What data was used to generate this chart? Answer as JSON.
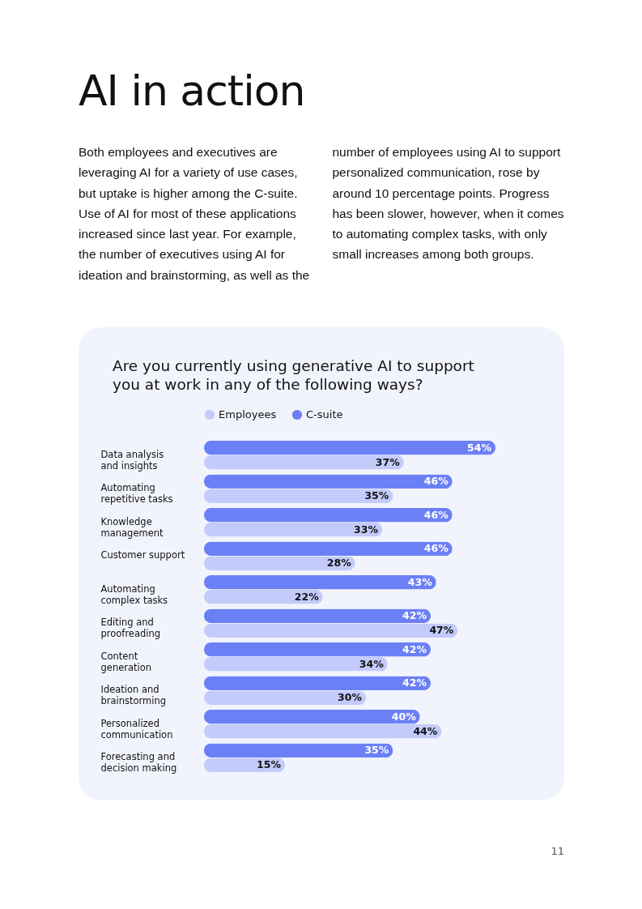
{
  "chart_data": {
    "type": "bar",
    "orientation": "horizontal",
    "title": "Are you currently using generative AI to support you at work in any of the following ways?",
    "annotations": [
      "AI in action",
      "Both employees and executives are leveraging AI for a variety of use cases, but uptake is higher among the C-suite. Use of AI for most of these applications increased since last year. For example, the number of executives using AI for ideation and brainstorming, as well as the number of employees using AI to support personalized communication, rose by around 10 percentage points. Progress has been slower, however, when it comes to automating complex tasks, with only small increases among both groups.",
      "11"
    ],
    "categories": [
      "Data analysis and insights",
      "Automating repetitive tasks",
      "Knowledge management",
      "Customer support",
      "Automating complex tasks",
      "Editing and proofreading",
      "Content generation",
      "Ideation and brainstorming",
      "Personalized communication",
      "Forecasting and decision making"
    ],
    "series": [
      {
        "name": "Employees",
        "color": "#c3cbfb",
        "values": [
          37,
          35,
          33,
          28,
          22,
          47,
          34,
          30,
          44,
          15
        ],
        "value_labels": [
          "37%",
          "35%",
          "33%",
          "28%",
          "22%",
          "47%",
          "34%",
          "30%",
          "44%",
          "15%"
        ]
      },
      {
        "name": "C-suite",
        "color": "#6c80f5",
        "values": [
          54,
          46,
          46,
          46,
          43,
          42,
          42,
          42,
          40,
          35
        ],
        "value_labels": [
          "54%",
          "46%",
          "46%",
          "46%",
          "43%",
          "42%",
          "42%",
          "42%",
          "40%",
          "35%"
        ]
      }
    ],
    "legend": "top left",
    "grid": false
  }
}
